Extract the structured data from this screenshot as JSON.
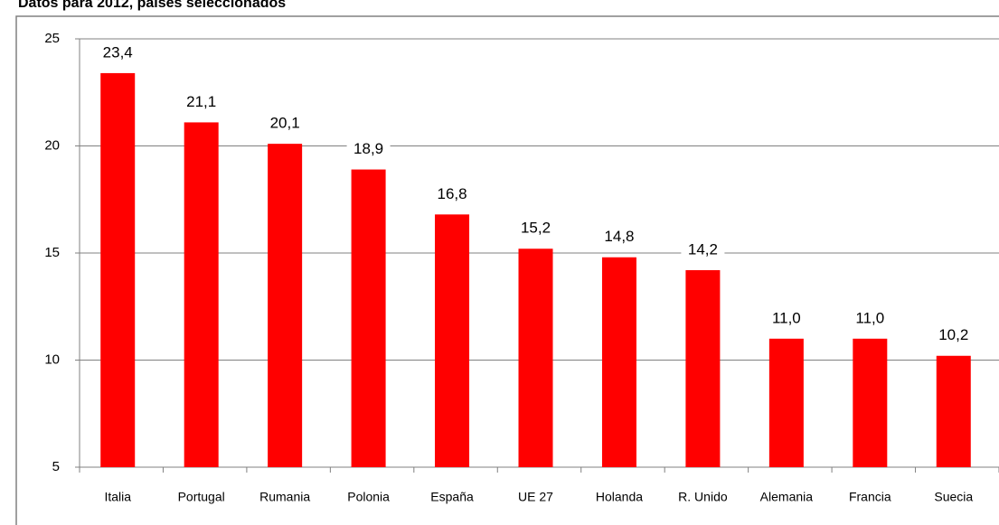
{
  "chart_data": {
    "type": "bar",
    "title": "Datos para 2012, países seleccionados",
    "categories": [
      "Italia",
      "Portugal",
      "Rumania",
      "Polonia",
      "España",
      "UE 27",
      "Holanda",
      "R. Unido",
      "Alemania",
      "Francia",
      "Suecia"
    ],
    "values": [
      23.4,
      21.1,
      20.1,
      18.9,
      16.8,
      15.2,
      14.8,
      14.2,
      11.0,
      11.0,
      10.2
    ],
    "value_labels": [
      "23,4",
      "21,1",
      "20,1",
      "18,9",
      "16,8",
      "15,2",
      "14,8",
      "14,2",
      "11,0",
      "11,0",
      "10,2"
    ],
    "color": "#ff0000",
    "ylim": [
      5,
      25
    ],
    "yticks": [
      5,
      10,
      15,
      20,
      25
    ],
    "grid": true
  }
}
